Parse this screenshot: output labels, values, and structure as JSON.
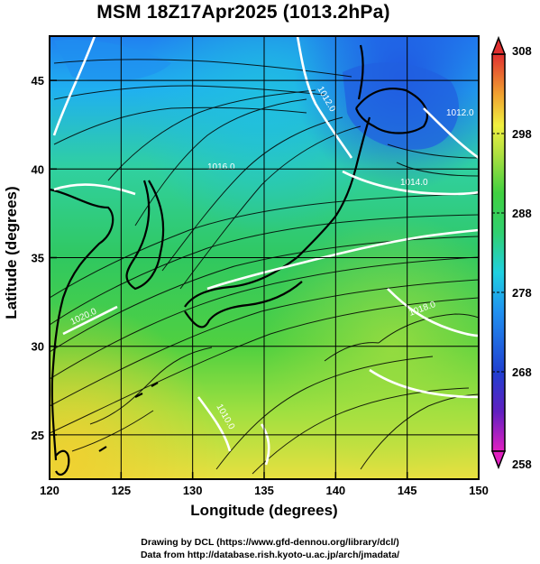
{
  "title": "MSM 18Z17Apr2025 (1013.2hPa)",
  "axes": {
    "xlabel": "Longitude (degrees)",
    "ylabel": "Latitude  (degrees)",
    "x_ticks": [
      "120",
      "125",
      "130",
      "135",
      "140",
      "145",
      "150"
    ],
    "y_ticks": [
      "25",
      "30",
      "35",
      "40",
      "45"
    ]
  },
  "colorbar": {
    "ticks": [
      "308",
      "298",
      "288",
      "278",
      "268",
      "258"
    ],
    "min": 258,
    "max": 308,
    "colors": [
      "#e020c0",
      "#2020c0",
      "#2060e0",
      "#20b0f0",
      "#20e0d0",
      "#30d080",
      "#40d040",
      "#a0e040",
      "#f0f040",
      "#f0c030",
      "#f08030",
      "#e03030"
    ]
  },
  "map": {
    "lon_range": [
      120,
      150
    ],
    "lat_range": [
      22.5,
      47.5
    ],
    "grid": true,
    "contour_labels": [
      "1012.0",
      "1014.0",
      "1016.0",
      "1018.0",
      "1020.0",
      "1010.0",
      "1012.0"
    ]
  },
  "credits": {
    "line1": "Drawing by DCL (https://www.gfd-dennou.org/library/dcl/)",
    "line2": "Data from http://database.rish.kyoto-u.ac.jp/arch/jmadata/"
  }
}
